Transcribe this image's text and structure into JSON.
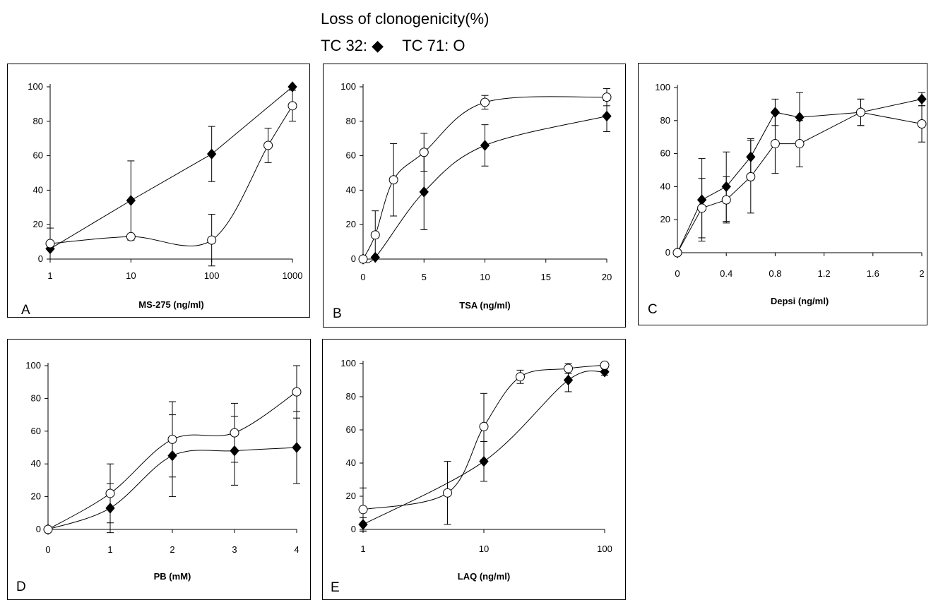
{
  "figure": {
    "title": "Loss of clonogenicity(%)",
    "legend": [
      {
        "label": "TC 32:",
        "symbol": "◆",
        "marker": "diamond"
      },
      {
        "label": "TC 71:",
        "symbol": "O",
        "marker": "circle"
      }
    ]
  },
  "chart_data": [
    {
      "panel": "A",
      "type": "line",
      "xlabel": "MS-275 (ng/ml)",
      "ylabel": "",
      "xscale": "log",
      "xlim": [
        1,
        1000
      ],
      "xticks": [
        1,
        10,
        100,
        1000
      ],
      "xtick_labels": [
        "1",
        "10",
        "100",
        "1000"
      ],
      "ylim": [
        0,
        100
      ],
      "yticks": [
        0,
        20,
        40,
        60,
        80,
        100
      ],
      "grid": false,
      "series": [
        {
          "name": "TC 32",
          "marker": "diamond",
          "smooth": false,
          "x": [
            1,
            10,
            100,
            1000
          ],
          "y": [
            6,
            34,
            61,
            100
          ],
          "err": [
            0,
            23,
            16,
            0
          ]
        },
        {
          "name": "TC 71",
          "marker": "circle",
          "smooth": true,
          "x": [
            1,
            10,
            100,
            500,
            1000
          ],
          "y": [
            9,
            13,
            11,
            66,
            89
          ],
          "err": [
            9,
            0,
            15,
            10,
            9
          ]
        }
      ]
    },
    {
      "panel": "B",
      "type": "line",
      "xlabel": "TSA (ng/ml)",
      "ylabel": "",
      "xscale": "linear",
      "xlim": [
        0,
        20
      ],
      "xticks": [
        0,
        5,
        10,
        15,
        20
      ],
      "xtick_labels": [
        "0",
        "5",
        "10",
        "15",
        "20"
      ],
      "ylim": [
        0,
        100
      ],
      "yticks": [
        0,
        20,
        40,
        60,
        80,
        100
      ],
      "grid": false,
      "series": [
        {
          "name": "TC 32",
          "marker": "diamond",
          "smooth": true,
          "x": [
            0,
            1,
            5,
            10,
            20
          ],
          "y": [
            0,
            1,
            39,
            66,
            83
          ],
          "err": [
            0,
            0,
            22,
            12,
            9
          ]
        },
        {
          "name": "TC 71",
          "marker": "circle",
          "smooth": true,
          "x": [
            0,
            1,
            2.5,
            5,
            10,
            20
          ],
          "y": [
            0,
            14,
            46,
            62,
            91,
            94
          ],
          "err": [
            0,
            14,
            21,
            11,
            4,
            5
          ]
        }
      ]
    },
    {
      "panel": "C",
      "type": "line",
      "xlabel": "Depsi (ng/ml)",
      "ylabel": "",
      "xscale": "linear",
      "xlim": [
        0,
        2
      ],
      "xticks": [
        0,
        0.4,
        0.8,
        1.2,
        1.6,
        2
      ],
      "xtick_labels": [
        "0",
        "0.4",
        "0.8",
        "1.2",
        "1.6",
        "2"
      ],
      "ylim": [
        0,
        100
      ],
      "yticks": [
        0,
        20,
        40,
        60,
        80,
        100
      ],
      "grid": false,
      "series": [
        {
          "name": "TC 32",
          "marker": "diamond",
          "smooth": false,
          "x": [
            0,
            0.2,
            0.4,
            0.6,
            0.8,
            1,
            1.5,
            2
          ],
          "y": [
            0,
            32,
            40,
            58,
            85,
            82,
            85,
            93
          ],
          "err": [
            0,
            25,
            21,
            11,
            8,
            15,
            8,
            4
          ]
        },
        {
          "name": "TC 71",
          "marker": "circle",
          "smooth": false,
          "x": [
            0,
            0.2,
            0.4,
            0.6,
            0.8,
            1,
            1.5,
            2
          ],
          "y": [
            0,
            27,
            32,
            46,
            66,
            66,
            85,
            78
          ],
          "err": [
            0,
            18,
            14,
            22,
            18,
            14,
            8,
            11
          ]
        }
      ]
    },
    {
      "panel": "D",
      "type": "line",
      "xlabel": "PB (mM)",
      "ylabel": "",
      "xscale": "linear",
      "xlim": [
        0,
        4
      ],
      "xticks": [
        0,
        1,
        2,
        3,
        4
      ],
      "xtick_labels": [
        "0",
        "1",
        "2",
        "3",
        "4"
      ],
      "ylim": [
        0,
        100
      ],
      "yticks": [
        0,
        20,
        40,
        60,
        80,
        100
      ],
      "grid": false,
      "series": [
        {
          "name": "TC 32",
          "marker": "diamond",
          "smooth": true,
          "x": [
            0,
            1,
            2,
            3,
            4
          ],
          "y": [
            0,
            13,
            45,
            48,
            50
          ],
          "err": [
            0,
            15,
            25,
            21,
            22
          ]
        },
        {
          "name": "TC 71",
          "marker": "circle",
          "smooth": true,
          "x": [
            0,
            1,
            2,
            3,
            4
          ],
          "y": [
            0,
            22,
            55,
            59,
            84
          ],
          "err": [
            0,
            18,
            23,
            18,
            16
          ]
        }
      ]
    },
    {
      "panel": "E",
      "type": "line",
      "xlabel": "LAQ (ng/ml)",
      "ylabel": "",
      "xscale": "log",
      "xlim": [
        1,
        100
      ],
      "xticks": [
        1,
        10,
        100
      ],
      "xtick_labels": [
        "1",
        "10",
        "100"
      ],
      "ylim": [
        0,
        100
      ],
      "yticks": [
        0,
        20,
        40,
        60,
        80,
        100
      ],
      "grid": false,
      "series": [
        {
          "name": "TC 32",
          "marker": "diamond",
          "smooth": true,
          "x": [
            1,
            10,
            50,
            100
          ],
          "y": [
            3,
            41,
            90,
            95
          ],
          "err": [
            4,
            12,
            7,
            2
          ]
        },
        {
          "name": "TC 71",
          "marker": "circle",
          "smooth": true,
          "x": [
            1,
            5,
            10,
            20,
            50,
            100
          ],
          "y": [
            12,
            22,
            62,
            92,
            97,
            99
          ],
          "err": [
            13,
            19,
            20,
            4,
            3,
            1
          ]
        }
      ]
    }
  ]
}
